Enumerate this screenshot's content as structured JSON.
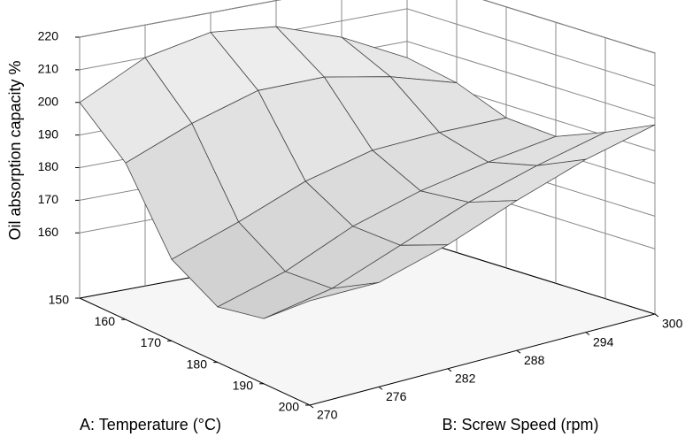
{
  "chart_data": {
    "type": "surface",
    "xlabel": "A: Temperature (°C)",
    "ylabel": "B: Screw Speed (rpm)",
    "zlabel": "Oil absorption capacity %",
    "x": [
      150,
      160,
      170,
      180,
      190,
      200
    ],
    "y": [
      270,
      276,
      282,
      288,
      294,
      300
    ],
    "z": [
      [
        200,
        210,
        214,
        212,
        205,
        195
      ],
      [
        188,
        196,
        202,
        202,
        198,
        192
      ],
      [
        165,
        172,
        180,
        185,
        186,
        186
      ],
      [
        157,
        163,
        172,
        178,
        182,
        185
      ],
      [
        160,
        164,
        172,
        180,
        186,
        191
      ],
      [
        172,
        172,
        178,
        186,
        193,
        198
      ]
    ],
    "xlim": [
      150,
      200
    ],
    "ylim": [
      270,
      300
    ],
    "zlim": [
      140,
      220
    ],
    "xticks": [
      150,
      160,
      170,
      180,
      190,
      200
    ],
    "yticks": [
      270,
      276,
      282,
      288,
      294,
      300
    ],
    "zticks": [
      160,
      170,
      180,
      190,
      200,
      210,
      220
    ],
    "grid": true
  }
}
